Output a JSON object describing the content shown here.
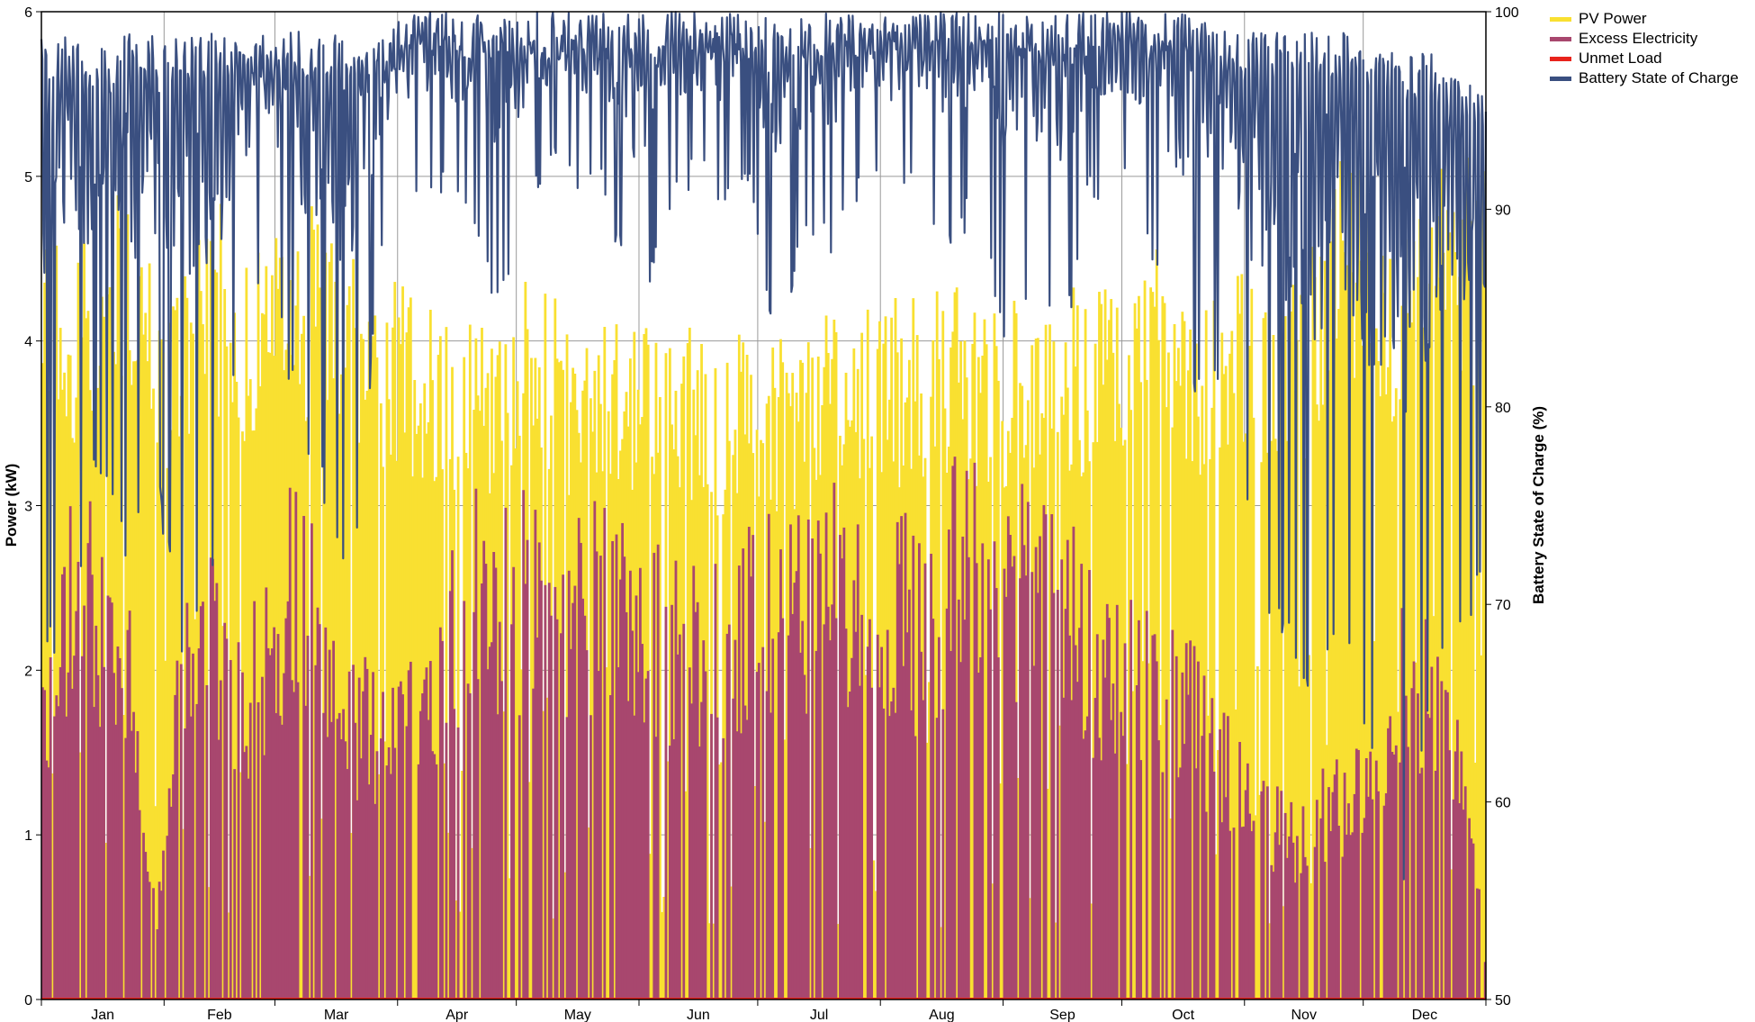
{
  "chart_data": {
    "type": "area",
    "title": "",
    "xlabel": "",
    "ylabel": "Power (kW)",
    "y2label": "Battery State of Charge (%)",
    "x_categories": [
      "Jan",
      "Feb",
      "Mar",
      "Apr",
      "May",
      "Jun",
      "Jul",
      "Aug",
      "Sep",
      "Oct",
      "Nov",
      "Dec"
    ],
    "ylim": [
      0,
      6
    ],
    "y_ticks": [
      "0",
      "1",
      "2",
      "3",
      "4",
      "5",
      "6"
    ],
    "y2lim": [
      50,
      100
    ],
    "y2_ticks": [
      "50",
      "60",
      "70",
      "80",
      "90",
      "100"
    ],
    "grid": true,
    "legend_position": "top-right",
    "series": [
      {
        "name": "PV Power",
        "axis": "left",
        "color": "#f9e031",
        "x_unit": "day",
        "values_weekly_max": [
          4.8,
          4.7,
          4.6,
          5.1,
          4.4,
          4.5,
          4.9,
          4.7,
          4.6,
          4.9,
          4.8,
          4.5,
          4.4,
          4.4,
          4.3,
          4.2,
          4.2,
          4.4,
          4.3,
          4.2,
          4.3,
          4.2,
          4.2,
          4.1,
          4.0,
          4.1,
          4.0,
          4.2,
          4.3,
          4.2,
          4.3,
          4.3,
          4.4,
          4.3,
          4.3,
          4.2,
          4.3,
          4.4,
          4.5,
          4.6,
          4.5,
          4.4,
          4.5,
          4.4,
          4.5,
          4.6,
          5.2,
          4.9,
          4.7,
          5.0,
          5.3,
          5.0
        ]
      },
      {
        "name": "Excess Electricity",
        "axis": "left",
        "color": "#a8476e",
        "x_unit": "day",
        "values_weekly_max": [
          1.9,
          3.1,
          3.0,
          2.6,
          0.5,
          2.9,
          2.7,
          2.3,
          2.7,
          3.4,
          2.7,
          2.2,
          2.0,
          2.3,
          2.6,
          3.2,
          3.1,
          3.1,
          3.0,
          3.1,
          3.2,
          2.9,
          2.8,
          2.7,
          2.8,
          2.9,
          3.0,
          3.1,
          3.3,
          3.1,
          3.1,
          2.8,
          3.3,
          3.5,
          3.2,
          3.3,
          3.1,
          2.6,
          2.7,
          2.4,
          2.3,
          2.1,
          1.7,
          1.5,
          1.2,
          1.4,
          1.5,
          1.6,
          2.5,
          2.3,
          1.7,
          0.3
        ]
      },
      {
        "name": "Unmet Load",
        "axis": "left",
        "color": "#e8231c",
        "x_unit": "day",
        "values_weekly_max": [
          0,
          0,
          0,
          0,
          0,
          0,
          0,
          0,
          0,
          0,
          0,
          0,
          0,
          0,
          0,
          0,
          0,
          0,
          0,
          0,
          0,
          0,
          0,
          0,
          0,
          0,
          0,
          0,
          0,
          0,
          0,
          0,
          0,
          0,
          0,
          0,
          0,
          0,
          0,
          0,
          0,
          0,
          0,
          0,
          0,
          0,
          0,
          0,
          0,
          0,
          0,
          0
        ]
      },
      {
        "name": "Battery State of Charge",
        "axis": "right",
        "color": "#3a4f80",
        "x_unit": "day",
        "values_weekly_min": [
          68,
          66,
          77,
          72,
          76,
          67,
          70,
          84,
          86,
          79,
          75,
          70,
          88,
          90,
          91,
          89,
          85,
          88,
          92,
          91,
          90,
          83,
          89,
          91,
          90,
          90,
          82,
          88,
          87,
          91,
          90,
          90,
          88,
          89,
          83,
          86,
          82,
          90,
          91,
          88,
          82,
          80,
          80,
          70,
          68,
          64,
          69,
          61,
          54,
          64,
          68,
          71
        ],
        "values_weekly_max": [
          99,
          99,
          98,
          99,
          99,
          99,
          99,
          99,
          99,
          99,
          99,
          99,
          99,
          100,
          100,
          100,
          100,
          100,
          100,
          100,
          100,
          100,
          100,
          100,
          100,
          100,
          100,
          100,
          100,
          100,
          100,
          100,
          100,
          100,
          100,
          100,
          100,
          100,
          100,
          100,
          100,
          100,
          99,
          99,
          99,
          99,
          99,
          98,
          98,
          98,
          97,
          96
        ]
      }
    ]
  }
}
